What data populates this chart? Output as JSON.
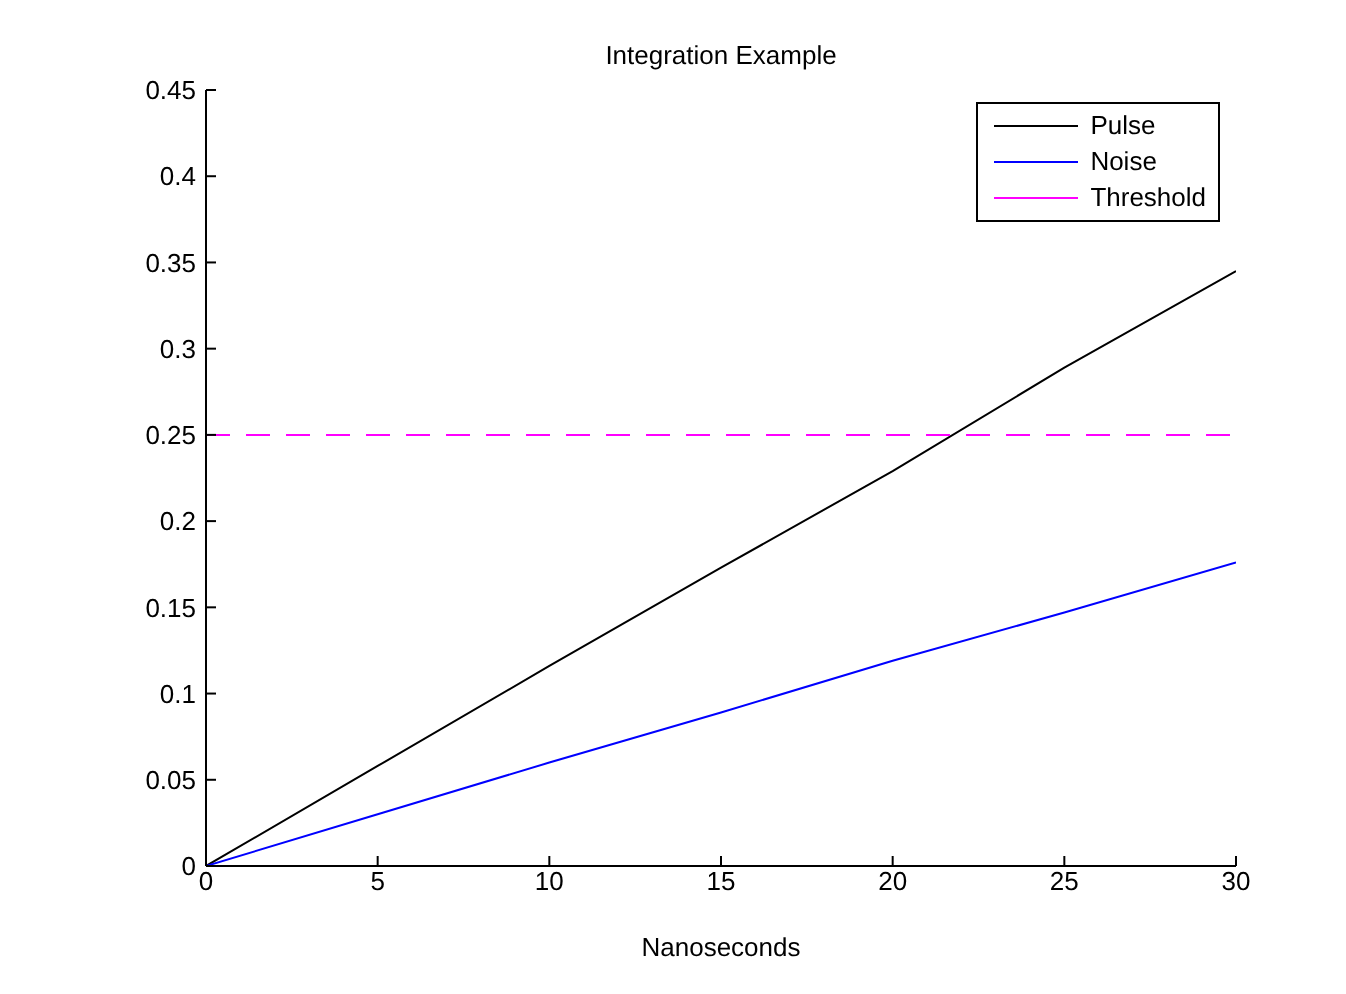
{
  "chart_data": {
    "type": "line",
    "title": "Integration Example",
    "xlabel": "Nanoseconds",
    "x": [
      0,
      5,
      10,
      15,
      20,
      25,
      30
    ],
    "series": [
      {
        "name": "Pulse",
        "color": "#000000",
        "values": [
          0,
          0.058,
          0.116,
          0.173,
          0.229,
          0.289,
          0.345
        ]
      },
      {
        "name": "Noise",
        "color": "#0000ff",
        "values": [
          0,
          0.03,
          0.06,
          0.089,
          0.119,
          0.147,
          0.176
        ]
      },
      {
        "name": "Threshold",
        "color": "#ff00ff",
        "x": [
          0,
          30
        ],
        "values": [
          0.25,
          0.25
        ],
        "line_style": "dashed"
      }
    ],
    "xlim": [
      0,
      30
    ],
    "xticks": [
      0,
      5,
      10,
      15,
      20,
      25,
      30
    ],
    "ylim": [
      0,
      0.45
    ],
    "yticks": [
      0,
      0.05,
      0.1,
      0.15,
      0.2,
      0.25,
      0.3,
      0.35,
      0.4,
      0.45
    ],
    "legend": "top right",
    "marker": "none",
    "line_style": "solid",
    "grid": false
  }
}
